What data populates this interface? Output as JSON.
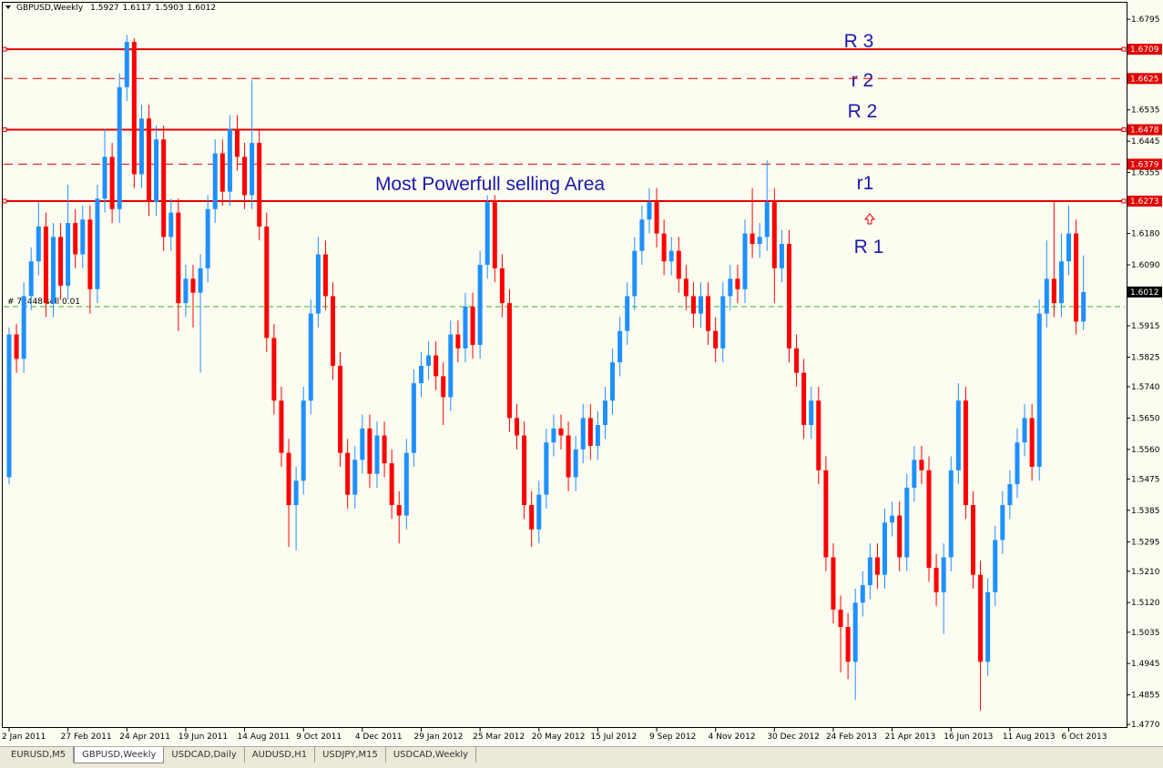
{
  "chart_data": {
    "type": "candlestick",
    "symbol": "GBPUSD,Weekly",
    "categories": [
      "2 Jan 2011",
      null,
      null,
      null,
      null,
      null,
      null,
      null,
      "27 Feb 2011",
      null,
      null,
      null,
      null,
      null,
      null,
      null,
      "24 Apr 2011",
      null,
      null,
      null,
      null,
      null,
      null,
      null,
      "19 Jun 2011",
      null,
      null,
      null,
      null,
      null,
      null,
      null,
      "14 Aug 2011",
      null,
      null,
      null,
      null,
      null,
      null,
      null,
      "9 Oct 2011",
      null,
      null,
      null,
      null,
      null,
      null,
      null,
      "4 Dec 2011",
      null,
      null,
      null,
      null,
      null,
      null,
      null,
      "29 Jan 2012",
      null,
      null,
      null,
      null,
      null,
      null,
      null,
      "25 Mar 2012",
      null,
      null,
      null,
      null,
      null,
      null,
      null,
      "20 May 2012",
      null,
      null,
      null,
      null,
      null,
      null,
      null,
      "15 Jul 2012",
      null,
      null,
      null,
      null,
      null,
      null,
      null,
      "9 Sep 2012",
      null,
      null,
      null,
      null,
      null,
      null,
      null,
      "4 Nov 2012",
      null,
      null,
      null,
      null,
      null,
      null,
      null,
      "30 Dec 2012",
      null,
      null,
      null,
      null,
      null,
      null,
      null,
      "24 Feb 2013",
      null,
      null,
      null,
      null,
      null,
      null,
      null,
      "21 Apr 2013",
      null,
      null,
      null,
      null,
      null,
      null,
      null,
      "16 Jun 2013",
      null,
      null,
      null,
      null,
      null,
      null,
      null,
      "11 Aug 2013",
      null,
      null,
      null,
      null,
      null,
      null,
      null,
      "6 Oct 2013",
      null,
      null
    ],
    "open": [
      1.548,
      1.589,
      1.582,
      1.6,
      1.61,
      1.62,
      1.598,
      1.617,
      1.603,
      1.621,
      1.612,
      1.622,
      1.602,
      1.628,
      1.64,
      1.625,
      1.66,
      1.673,
      1.635,
      1.651,
      1.627,
      1.645,
      1.617,
      1.624,
      1.598,
      1.605,
      1.601,
      1.608,
      1.625,
      1.641,
      1.63,
      1.648,
      1.64,
      1.629,
      1.644,
      1.62,
      1.588,
      1.57,
      1.555,
      1.54,
      1.547,
      1.57,
      1.595,
      1.612,
      1.6,
      1.58,
      1.555,
      1.543,
      1.553,
      1.562,
      1.549,
      1.56,
      1.552,
      1.54,
      1.537,
      1.555,
      1.575,
      1.58,
      1.583,
      1.577,
      1.571,
      1.589,
      1.585,
      1.597,
      1.586,
      1.609,
      1.627,
      1.608,
      1.598,
      1.565,
      1.56,
      1.54,
      1.533,
      1.543,
      1.558,
      1.562,
      1.56,
      1.548,
      1.556,
      1.565,
      1.557,
      1.563,
      1.57,
      1.581,
      1.59,
      1.6,
      1.613,
      1.622,
      1.627,
      1.618,
      1.61,
      1.613,
      1.605,
      1.6,
      1.595,
      1.6,
      1.59,
      1.585,
      1.6,
      1.605,
      1.602,
      1.618,
      1.615,
      1.617,
      1.627,
      1.608,
      1.615,
      1.585,
      1.578,
      1.563,
      1.57,
      1.55,
      1.525,
      1.51,
      1.505,
      1.495,
      1.512,
      1.517,
      1.525,
      1.52,
      1.535,
      1.537,
      1.525,
      1.545,
      1.553,
      1.55,
      1.522,
      1.515,
      1.525,
      1.55,
      1.57,
      1.54,
      1.52,
      1.495,
      1.515,
      1.53,
      1.54,
      1.546,
      1.558,
      1.565,
      1.551,
      1.595,
      1.605,
      1.598,
      1.61,
      1.618,
      1.5927
    ],
    "high": [
      1.591,
      1.592,
      1.604,
      1.614,
      1.627,
      1.624,
      1.621,
      1.621,
      1.632,
      1.625,
      1.626,
      1.626,
      1.632,
      1.648,
      1.644,
      1.664,
      1.675,
      1.674,
      1.655,
      1.655,
      1.649,
      1.649,
      1.628,
      1.628,
      1.609,
      1.609,
      1.612,
      1.629,
      1.645,
      1.645,
      1.652,
      1.652,
      1.644,
      1.662,
      1.648,
      1.624,
      1.592,
      1.574,
      1.559,
      1.551,
      1.574,
      1.599,
      1.617,
      1.616,
      1.604,
      1.584,
      1.559,
      1.557,
      1.566,
      1.566,
      1.564,
      1.564,
      1.556,
      1.544,
      1.559,
      1.579,
      1.584,
      1.587,
      1.587,
      1.581,
      1.593,
      1.593,
      1.601,
      1.601,
      1.613,
      1.629,
      1.629,
      1.612,
      1.602,
      1.569,
      1.564,
      1.544,
      1.547,
      1.562,
      1.566,
      1.566,
      1.564,
      1.56,
      1.569,
      1.569,
      1.567,
      1.574,
      1.585,
      1.594,
      1.604,
      1.617,
      1.626,
      1.631,
      1.631,
      1.622,
      1.617,
      1.617,
      1.609,
      1.604,
      1.604,
      1.604,
      1.594,
      1.604,
      1.609,
      1.609,
      1.622,
      1.631,
      1.621,
      1.639,
      1.631,
      1.619,
      1.619,
      1.589,
      1.582,
      1.574,
      1.574,
      1.554,
      1.529,
      1.514,
      1.509,
      1.516,
      1.521,
      1.529,
      1.529,
      1.539,
      1.541,
      1.541,
      1.549,
      1.557,
      1.557,
      1.554,
      1.526,
      1.529,
      1.554,
      1.575,
      1.574,
      1.544,
      1.524,
      1.519,
      1.534,
      1.544,
      1.55,
      1.562,
      1.569,
      1.569,
      1.599,
      1.616,
      1.627,
      1.618,
      1.626,
      1.622,
      1.6117
    ],
    "low": [
      1.546,
      1.578,
      1.578,
      1.596,
      1.606,
      1.594,
      1.594,
      1.599,
      1.599,
      1.608,
      1.608,
      1.595,
      1.598,
      1.624,
      1.621,
      1.621,
      1.656,
      1.631,
      1.631,
      1.623,
      1.623,
      1.613,
      1.613,
      1.59,
      1.594,
      1.591,
      1.578,
      1.604,
      1.621,
      1.626,
      1.626,
      1.636,
      1.625,
      1.625,
      1.616,
      1.584,
      1.566,
      1.551,
      1.528,
      1.527,
      1.543,
      1.566,
      1.591,
      1.596,
      1.576,
      1.551,
      1.539,
      1.539,
      1.549,
      1.545,
      1.545,
      1.548,
      1.536,
      1.529,
      1.533,
      1.551,
      1.571,
      1.576,
      1.573,
      1.563,
      1.567,
      1.581,
      1.581,
      1.582,
      1.582,
      1.605,
      1.604,
      1.594,
      1.561,
      1.556,
      1.536,
      1.528,
      1.529,
      1.539,
      1.554,
      1.556,
      1.544,
      1.544,
      1.552,
      1.553,
      1.553,
      1.559,
      1.566,
      1.577,
      1.586,
      1.596,
      1.609,
      1.618,
      1.614,
      1.606,
      1.606,
      1.601,
      1.596,
      1.591,
      1.591,
      1.586,
      1.581,
      1.581,
      1.596,
      1.598,
      1.598,
      1.611,
      1.611,
      1.613,
      1.598,
      1.604,
      1.581,
      1.574,
      1.559,
      1.559,
      1.546,
      1.521,
      1.506,
      1.492,
      1.49,
      1.484,
      1.508,
      1.513,
      1.516,
      1.516,
      1.531,
      1.521,
      1.521,
      1.541,
      1.546,
      1.518,
      1.511,
      1.503,
      1.521,
      1.546,
      1.536,
      1.516,
      1.481,
      1.491,
      1.511,
      1.526,
      1.536,
      1.542,
      1.554,
      1.547,
      1.547,
      1.591,
      1.594,
      1.594,
      1.606,
      1.589,
      1.5903
    ],
    "close": [
      1.589,
      1.582,
      1.6,
      1.61,
      1.62,
      1.598,
      1.617,
      1.603,
      1.621,
      1.612,
      1.622,
      1.602,
      1.628,
      1.64,
      1.625,
      1.66,
      1.673,
      1.635,
      1.651,
      1.627,
      1.645,
      1.617,
      1.624,
      1.598,
      1.605,
      1.601,
      1.608,
      1.625,
      1.641,
      1.63,
      1.648,
      1.64,
      1.629,
      1.644,
      1.62,
      1.588,
      1.57,
      1.555,
      1.54,
      1.547,
      1.57,
      1.595,
      1.612,
      1.6,
      1.58,
      1.555,
      1.543,
      1.553,
      1.562,
      1.549,
      1.56,
      1.552,
      1.54,
      1.537,
      1.555,
      1.575,
      1.58,
      1.583,
      1.577,
      1.571,
      1.589,
      1.585,
      1.597,
      1.586,
      1.609,
      1.627,
      1.608,
      1.598,
      1.565,
      1.56,
      1.54,
      1.533,
      1.543,
      1.558,
      1.562,
      1.56,
      1.548,
      1.556,
      1.565,
      1.557,
      1.563,
      1.57,
      1.581,
      1.59,
      1.6,
      1.613,
      1.622,
      1.627,
      1.618,
      1.61,
      1.613,
      1.605,
      1.6,
      1.595,
      1.6,
      1.59,
      1.585,
      1.6,
      1.605,
      1.602,
      1.618,
      1.615,
      1.617,
      1.627,
      1.608,
      1.615,
      1.585,
      1.578,
      1.563,
      1.57,
      1.55,
      1.525,
      1.51,
      1.505,
      1.495,
      1.512,
      1.517,
      1.525,
      1.52,
      1.535,
      1.537,
      1.525,
      1.545,
      1.553,
      1.55,
      1.522,
      1.515,
      1.525,
      1.55,
      1.57,
      1.54,
      1.52,
      1.495,
      1.515,
      1.53,
      1.54,
      1.546,
      1.558,
      1.565,
      1.551,
      1.595,
      1.605,
      1.598,
      1.61,
      1.618,
      1.5927,
      1.6012
    ],
    "up_color": "#1e90ff",
    "down_color": "#ff0000",
    "ylim": [
      1.476,
      1.684
    ],
    "yticks": [
      1.6795,
      1.6535,
      1.6445,
      1.6355,
      {
        "value": 1.618,
        "label": "1.6180"
      },
      {
        "value": 1.609,
        "label": "1.6090"
      },
      1.5915,
      1.5825,
      {
        "value": 1.574,
        "label": "1.5740"
      },
      {
        "value": 1.565,
        "label": "1.5650"
      },
      {
        "value": 1.556,
        "label": "1.5560"
      },
      1.5475,
      1.5385,
      1.5295,
      {
        "value": 1.521,
        "label": "1.5210"
      },
      {
        "value": 1.512,
        "label": "1.5120"
      },
      1.5035,
      1.4945,
      1.4855,
      {
        "value": 1.477,
        "label": "1.4770"
      }
    ],
    "levels": [
      {
        "value": 1.6709,
        "style": "solid",
        "color": "#e00000"
      },
      {
        "value": 1.6625,
        "style": "dashed",
        "color": "#e00000"
      },
      {
        "value": 1.6478,
        "style": "solid",
        "color": "#e00000"
      },
      {
        "value": 1.6379,
        "style": "dashed",
        "color": "#e00000"
      },
      {
        "value": 1.6273,
        "style": "solid",
        "color": "#e00000"
      }
    ],
    "order_line": {
      "value": 1.597,
      "label": "# 72448 sell 0.01",
      "color": "#2eb82e"
    },
    "annotations": [
      "R 3",
      "r 2",
      "R 2",
      "r1",
      "R 1",
      "Most Powerfull selling Area"
    ]
  },
  "tabs": [
    "EURUSD,M5",
    "GBPUSD,Weekly",
    "USDCAD,Daily",
    "AUDUSD,H1",
    "USDJPY,M15",
    "USDCAD,Weekly"
  ],
  "active_tab": 1
}
